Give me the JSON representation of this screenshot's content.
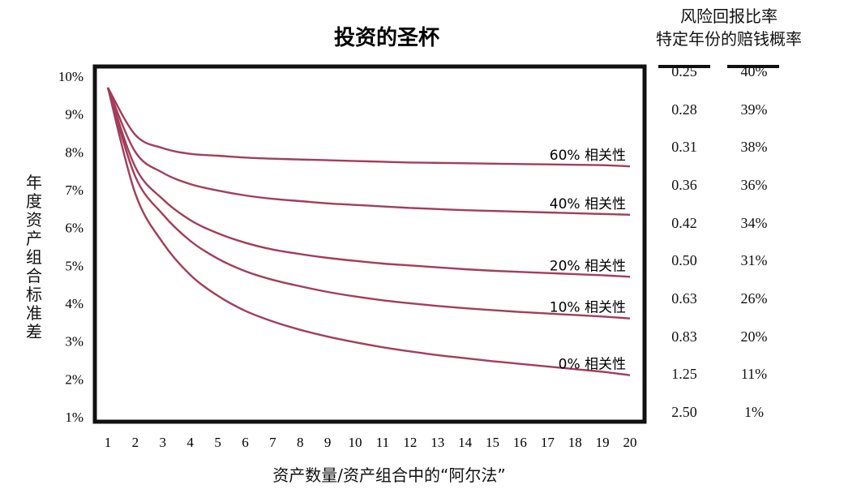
{
  "chart_data": {
    "type": "line",
    "title": "投资的圣杯",
    "xlabel": "资产数量/资产组合中的“阿尔法”",
    "ylabel": "年度资产组合标准差",
    "x": [
      1,
      2,
      3,
      4,
      5,
      6,
      7,
      8,
      9,
      10,
      11,
      12,
      13,
      14,
      15,
      16,
      17,
      18,
      19,
      20
    ],
    "xticks": [
      "1",
      "2",
      "3",
      "4",
      "5",
      "6",
      "7",
      "8",
      "9",
      "10",
      "11",
      "12",
      "13",
      "14",
      "15",
      "16",
      "17",
      "18",
      "19",
      "20"
    ],
    "yticks": [
      "10%",
      "9%",
      "8%",
      "7%",
      "6%",
      "5%",
      "4%",
      "3%",
      "2%",
      "1%"
    ],
    "ylim": [
      1,
      10
    ],
    "xlim": [
      1,
      20
    ],
    "grid": false,
    "line_color": "#a23d5a",
    "series": [
      {
        "name": "60% 相关性",
        "values": [
          9.7,
          8.45,
          8.1,
          7.95,
          7.9,
          7.85,
          7.82,
          7.8,
          7.78,
          7.76,
          7.74,
          7.72,
          7.71,
          7.7,
          7.69,
          7.68,
          7.67,
          7.66,
          7.65,
          7.62
        ]
      },
      {
        "name": "40% 相关性",
        "values": [
          9.7,
          8.0,
          7.45,
          7.15,
          6.98,
          6.85,
          6.76,
          6.7,
          6.64,
          6.6,
          6.56,
          6.52,
          6.49,
          6.46,
          6.44,
          6.42,
          6.4,
          6.38,
          6.36,
          6.34
        ]
      },
      {
        "name": "20% 相关性",
        "values": [
          9.7,
          7.6,
          6.75,
          6.2,
          5.85,
          5.6,
          5.42,
          5.3,
          5.2,
          5.12,
          5.05,
          5.0,
          4.95,
          4.9,
          4.86,
          4.83,
          4.8,
          4.77,
          4.74,
          4.7
        ]
      },
      {
        "name": "10% 相关性",
        "values": [
          9.7,
          7.35,
          6.35,
          5.65,
          5.18,
          4.85,
          4.62,
          4.45,
          4.3,
          4.18,
          4.08,
          4.0,
          3.93,
          3.87,
          3.82,
          3.77,
          3.73,
          3.69,
          3.65,
          3.6
        ]
      },
      {
        "name": "0% 相关性",
        "values": [
          9.7,
          6.9,
          5.6,
          4.75,
          4.2,
          3.8,
          3.52,
          3.3,
          3.12,
          2.97,
          2.84,
          2.73,
          2.63,
          2.55,
          2.47,
          2.4,
          2.33,
          2.26,
          2.19,
          2.1
        ]
      }
    ]
  },
  "side_table": {
    "header_line1": "风险回报比率",
    "header_line2": "特定年份的赔钱概率",
    "rows": [
      {
        "ratio": "0.25",
        "prob": "40%"
      },
      {
        "ratio": "0.28",
        "prob": "39%"
      },
      {
        "ratio": "0.31",
        "prob": "38%"
      },
      {
        "ratio": "0.36",
        "prob": "36%"
      },
      {
        "ratio": "0.42",
        "prob": "34%"
      },
      {
        "ratio": "0.50",
        "prob": "31%"
      },
      {
        "ratio": "0.63",
        "prob": "26%"
      },
      {
        "ratio": "0.83",
        "prob": "20%"
      },
      {
        "ratio": "1.25",
        "prob": "11%"
      },
      {
        "ratio": "2.50",
        "prob": "1%"
      }
    ]
  }
}
